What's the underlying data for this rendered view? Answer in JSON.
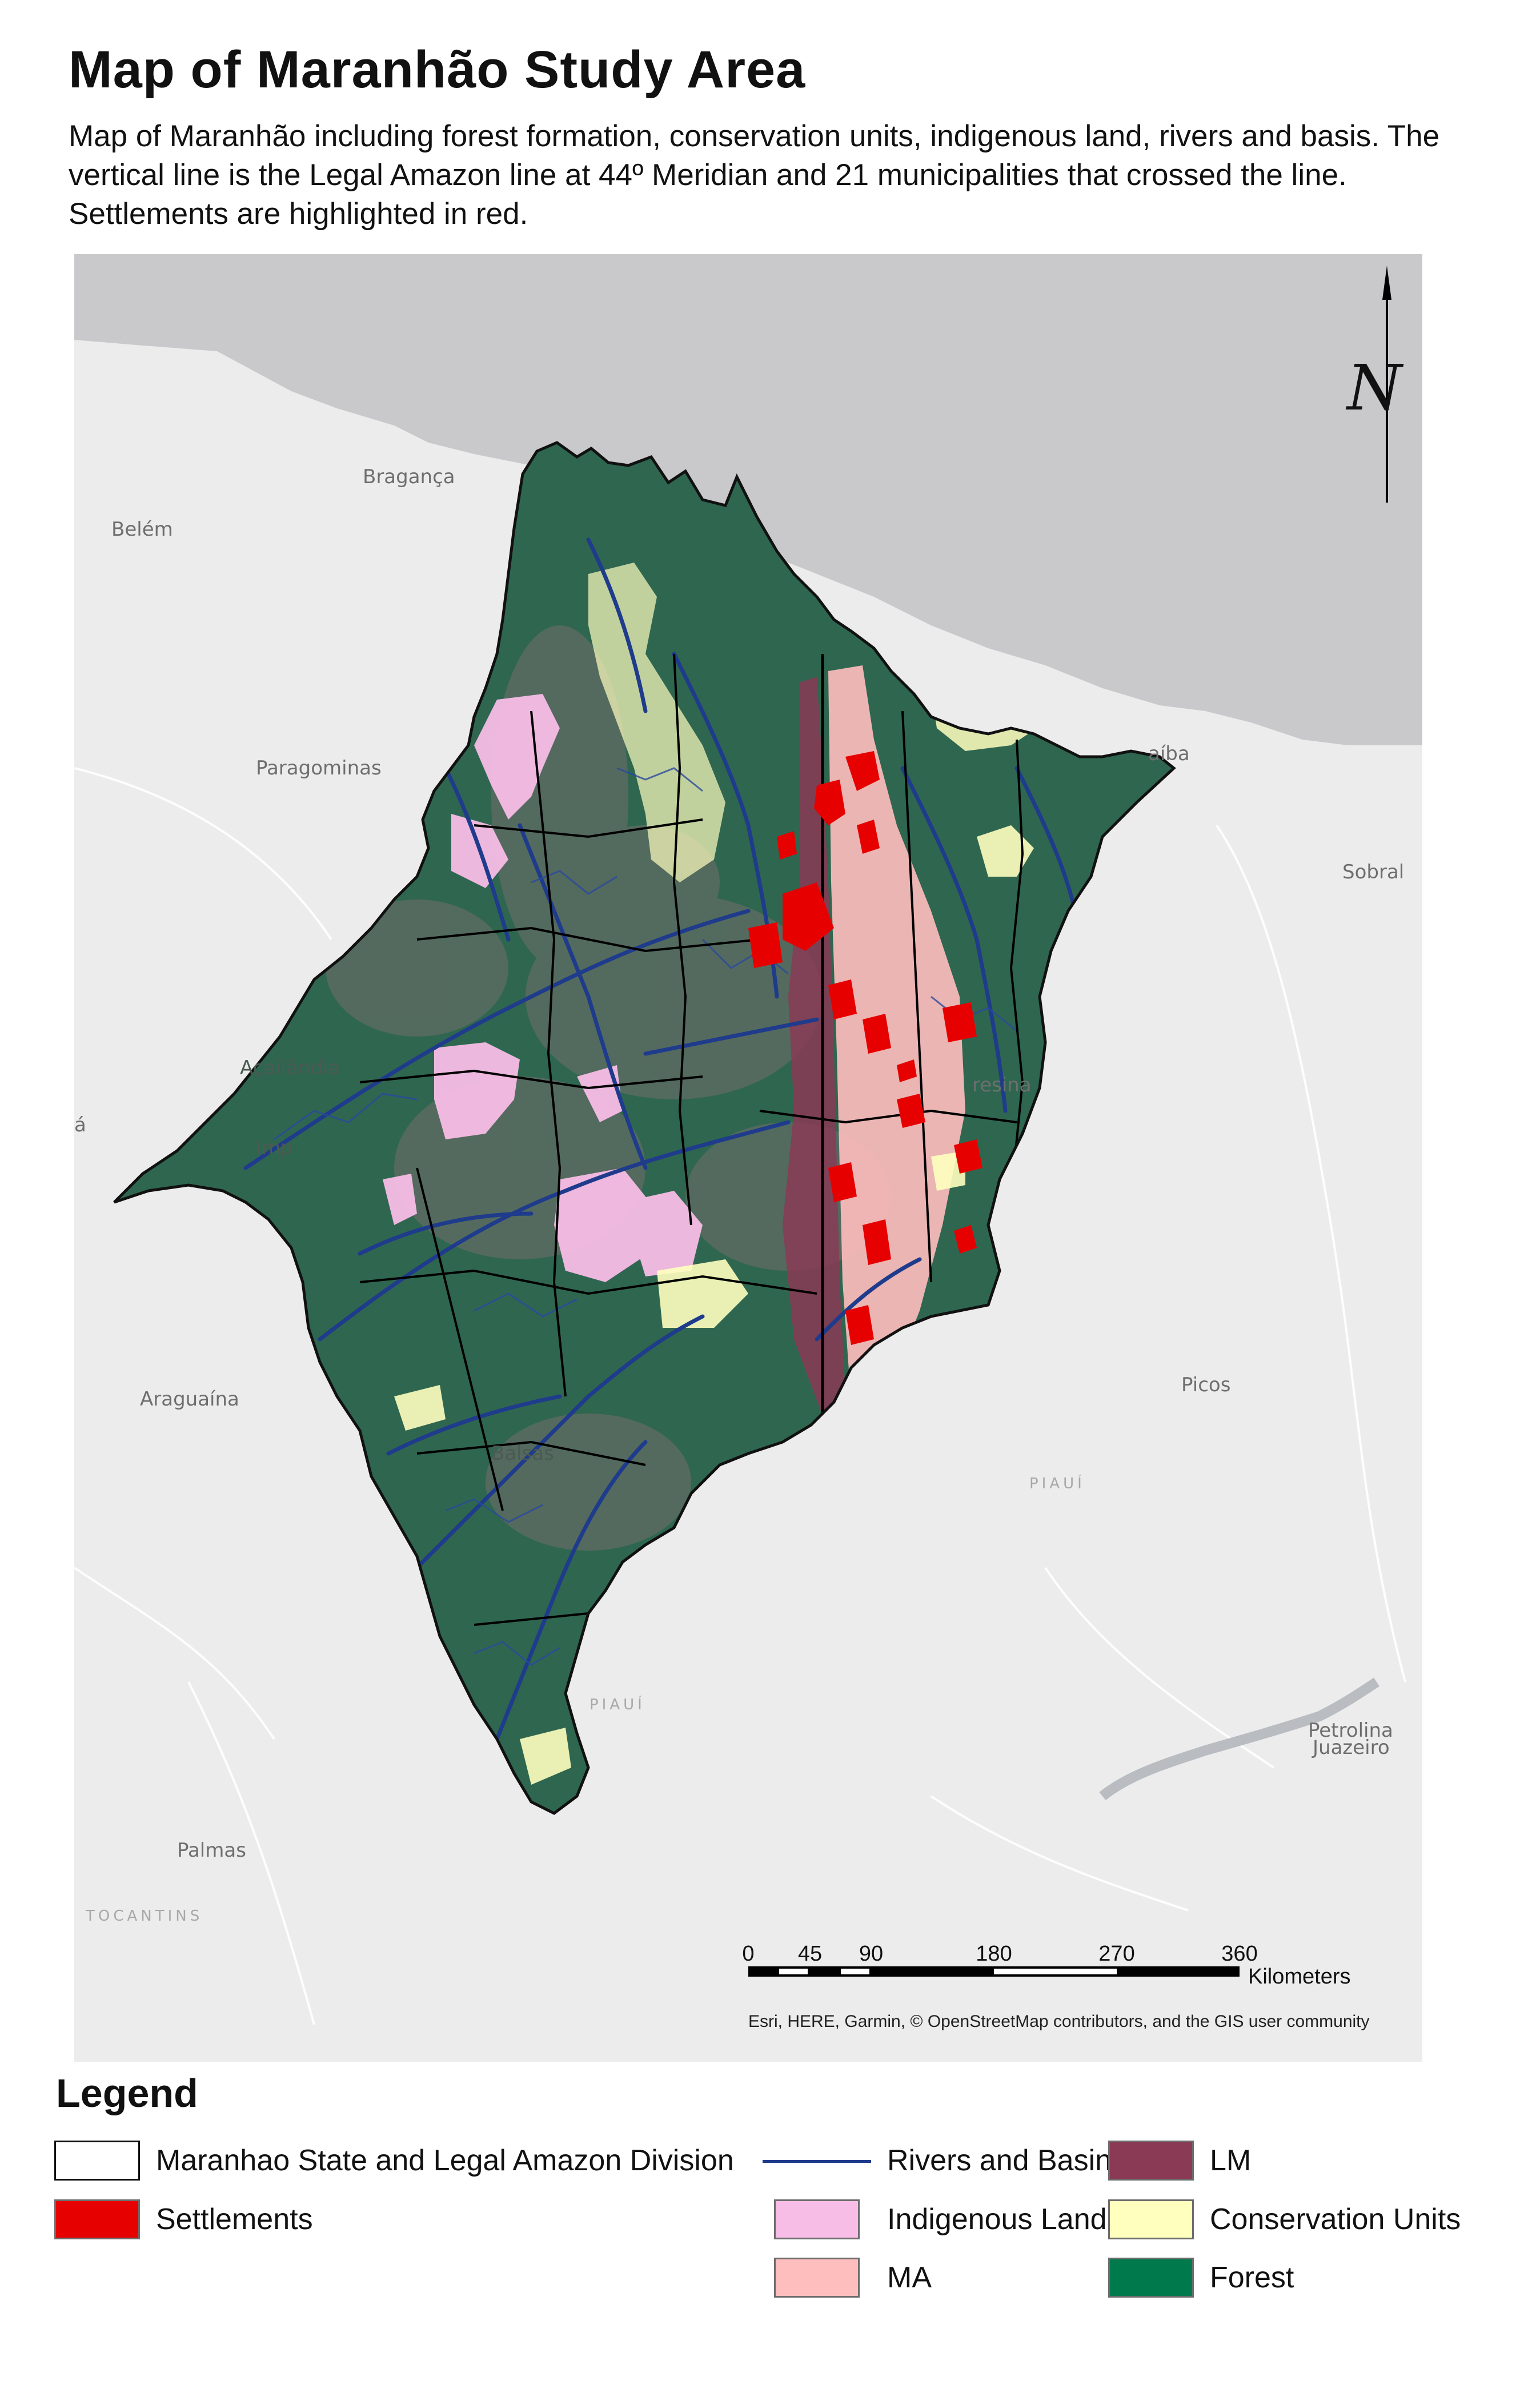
{
  "header": {
    "title": "Map of Maranhão Study Area",
    "subtitle": "Map of Maranhão  including forest formation, conservation units, indigenous land, rivers and basis. The vertical line is the Legal Amazon line at 44º Meridian and 21 municipalities that crossed the line. Settlements are highlighted in red."
  },
  "map": {
    "place_labels": {
      "belem": "Belém",
      "braganca": "Bragança",
      "paragominas": "Paragominas",
      "parnaiba": "aíba",
      "sobral": "Sobral",
      "teresina": "resina",
      "picos": "Picos",
      "araguaina": "Araguaína",
      "palmas": "Palmas",
      "petrolina": "Petrolina",
      "juazeiro": "Juazeiro",
      "imperatriz": "Imp",
      "acailandia": "Açailândia",
      "balsas": "Balsas",
      "west_edge": "á"
    },
    "region_labels": {
      "piaui_east": "PIAUÍ",
      "piaui_south": "PIAUÍ",
      "tocantins": "TOCANTINS"
    },
    "north_arrow": {
      "letter": "N"
    },
    "scale_bar": {
      "ticks": [
        "0",
        "45",
        "90",
        "180",
        "270",
        "360"
      ],
      "unit": "Kilometers"
    },
    "attribution": "Esri, HERE, Garmin, © OpenStreetMap contributors, and the GIS user community"
  },
  "legend": {
    "title": "Legend",
    "items": [
      {
        "label": "Maranhao State and Legal Amazon Division",
        "kind": "box",
        "color": "#ffffff"
      },
      {
        "label": "Rivers and Basin",
        "kind": "line",
        "color": "#1f3b8c"
      },
      {
        "label": "LM",
        "kind": "box",
        "color": "#8a3a55"
      },
      {
        "label": "Settlements",
        "kind": "box",
        "color": "#e60000"
      },
      {
        "label": "Indigenous Land",
        "kind": "box",
        "color": "#f8bde6"
      },
      {
        "label": "Conservation Units",
        "kind": "box",
        "color": "#ffffbe"
      },
      {
        "label": "MA",
        "kind": "box",
        "color": "#ffbebe"
      },
      {
        "label": "Forest",
        "kind": "box",
        "color": "#007a4d"
      }
    ]
  },
  "colors": {
    "ocean": "#c9c9cc",
    "land_basemap": "#ececec",
    "state_fill": "#2f6650",
    "rivers": "#1f3b8c",
    "settlements": "#e60000",
    "lm": "#8a3a55",
    "ma": "#ffbebe",
    "indigenous_land": "#f8bde6",
    "conservation_units": "#ffffbe"
  }
}
